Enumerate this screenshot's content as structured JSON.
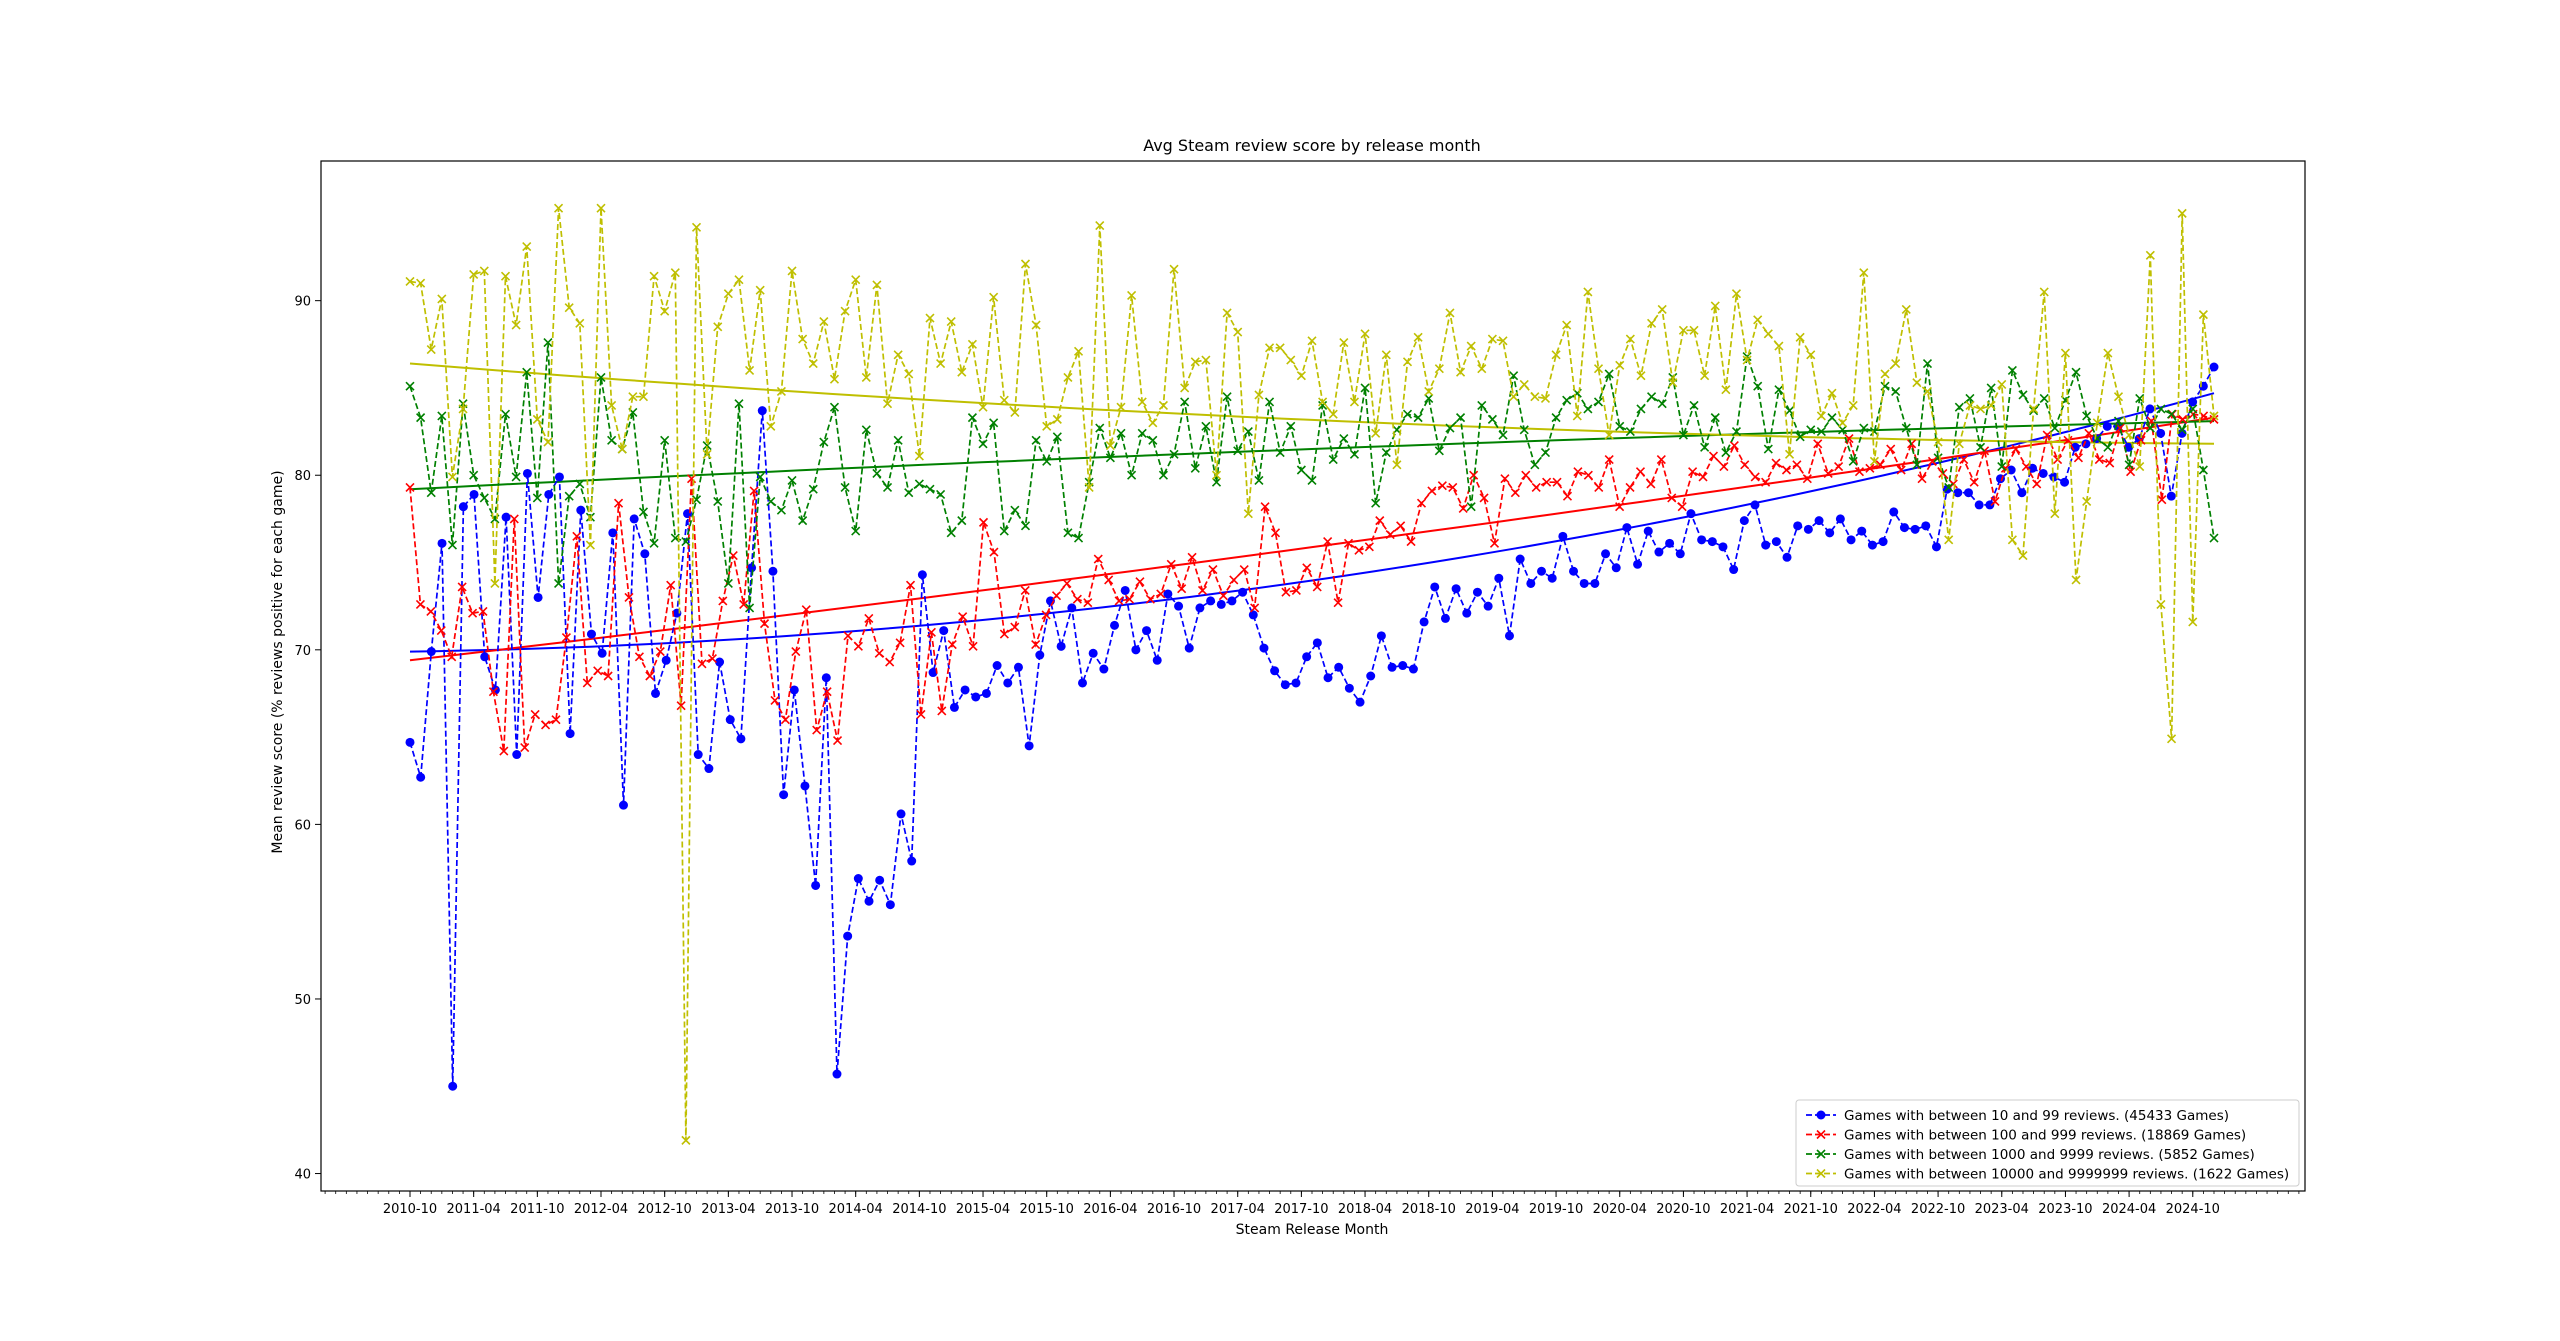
{
  "chart_data": {
    "type": "line",
    "title": "Avg Steam review score by release month",
    "xlabel": "Steam Release Month",
    "ylabel": "Mean review score (% reviews positive for each game)",
    "x_start": "2010-10",
    "x_end": "2024-12",
    "x_ticks": [
      "2010-10",
      "2011-04",
      "2011-10",
      "2012-04",
      "2012-10",
      "2013-04",
      "2013-10",
      "2014-04",
      "2014-10",
      "2015-04",
      "2015-10",
      "2016-04",
      "2016-10",
      "2017-04",
      "2017-10",
      "2018-04",
      "2018-10",
      "2019-04",
      "2019-10",
      "2020-04",
      "2020-10",
      "2021-04",
      "2021-10",
      "2022-04",
      "2022-10",
      "2023-04",
      "2023-10",
      "2024-04",
      "2024-10"
    ],
    "ylim": [
      39,
      98
    ],
    "y_ticks": [
      40,
      50,
      60,
      70,
      80,
      90
    ],
    "grid": false,
    "legend_position": "bottom-right",
    "series": [
      {
        "name": "Games with between 10 and 99 reviews. (45433 Games)",
        "color": "#0000ff",
        "marker": "circle",
        "values": [
          64.7,
          62.7,
          69.9,
          76.1,
          45.0,
          78.2,
          78.9,
          69.6,
          67.7,
          77.6,
          64.0,
          80.1,
          73.0,
          78.9,
          79.9,
          65.2,
          78.0,
          70.9,
          69.8,
          76.7,
          61.1,
          77.5,
          75.5,
          67.5,
          69.4,
          72.1,
          77.8,
          64.0,
          63.2,
          69.3,
          66.0,
          64.9,
          74.7,
          83.7,
          74.5,
          61.7,
          67.7,
          62.2,
          56.5,
          68.4,
          45.7,
          53.6,
          56.9,
          55.6,
          56.8,
          55.4,
          60.6,
          57.9,
          74.3,
          68.7,
          71.1,
          66.7,
          67.7,
          67.3,
          67.5,
          69.1,
          68.1,
          69.0,
          64.5,
          69.7,
          72.8,
          70.2,
          72.4,
          68.1,
          69.8,
          68.9,
          71.4,
          73.4,
          70.0,
          71.1,
          69.4,
          73.2,
          72.5,
          70.1,
          72.4,
          72.8,
          72.6,
          72.8,
          73.3,
          72.0,
          70.1,
          68.8,
          68.0,
          68.1,
          69.6,
          70.4,
          68.4,
          69.0,
          67.8,
          67.0,
          68.5,
          70.8,
          69.0,
          69.1,
          68.9,
          71.6,
          73.6,
          71.8,
          73.5,
          72.1,
          73.3,
          72.5,
          74.1,
          70.8,
          75.2,
          73.8,
          74.5,
          74.1,
          76.5,
          74.5,
          73.8,
          73.8,
          75.5,
          74.7,
          77.0,
          74.9,
          76.8,
          75.6,
          76.1,
          75.5,
          77.8,
          76.3,
          76.2,
          75.9,
          74.6,
          77.4,
          78.3,
          76.0,
          76.2,
          75.3,
          77.1,
          76.9,
          77.4,
          76.7,
          77.5,
          76.3,
          76.8,
          76.0,
          76.2,
          77.9,
          77.0,
          76.9,
          77.1,
          75.9,
          79.2,
          79.0,
          79.0,
          78.3,
          78.3,
          79.8,
          80.3,
          79.0,
          80.4,
          80.1,
          79.9,
          79.6,
          81.6,
          81.8,
          82.1,
          82.8,
          82.8,
          81.6,
          82.1,
          83.8,
          82.4,
          78.8,
          82.4,
          84.2,
          85.1,
          86.2
        ]
      },
      {
        "name": "Games with between 100 and 999 reviews. (18869 Games)",
        "color": "#ff0000",
        "marker": "x",
        "values": [
          79.3,
          72.6,
          72.2,
          71.1,
          69.6,
          73.6,
          72.1,
          72.2,
          67.6,
          64.2,
          77.5,
          64.4,
          66.3,
          65.7,
          66.0,
          70.7,
          76.5,
          68.1,
          68.8,
          68.5,
          78.4,
          73.0,
          69.6,
          68.5,
          69.9,
          73.7,
          66.8,
          79.8,
          69.2,
          69.5,
          72.8,
          75.4,
          72.6,
          79.1,
          71.5,
          67.1,
          66.0,
          69.9,
          72.3,
          65.4,
          67.6,
          64.8,
          70.8,
          70.2,
          71.8,
          69.8,
          69.3,
          70.4,
          73.7,
          66.3,
          71.0,
          66.5,
          70.3,
          71.9,
          70.2,
          77.3,
          75.6,
          70.9,
          71.3,
          73.4,
          70.3,
          72.0,
          73.1,
          73.8,
          72.9,
          72.7,
          75.2,
          74.0,
          72.8,
          72.9,
          73.9,
          72.9,
          73.2,
          74.9,
          73.5,
          75.3,
          73.4,
          74.6,
          73.1,
          74.0,
          74.6,
          72.4,
          78.2,
          76.7,
          73.3,
          73.4,
          74.7,
          73.6,
          76.2,
          72.7,
          76.1,
          75.7,
          75.9,
          77.4,
          76.6,
          77.1,
          76.2,
          78.4,
          79.1,
          79.4,
          79.3,
          78.1,
          80.0,
          78.7,
          76.1,
          79.8,
          79.0,
          80.0,
          79.3,
          79.6,
          79.6,
          78.8,
          80.2,
          80.0,
          79.3,
          80.9,
          78.2,
          79.3,
          80.2,
          79.5,
          80.9,
          78.7,
          78.2,
          80.2,
          79.9,
          81.1,
          80.5,
          81.7,
          80.6,
          79.9,
          79.6,
          80.7,
          80.3,
          80.6,
          79.8,
          81.8,
          80.1,
          80.5,
          82.1,
          80.2,
          80.4,
          80.6,
          81.5,
          80.3,
          81.8,
          79.8,
          80.8,
          80.1,
          79.5,
          80.9,
          79.6,
          81.4,
          78.5,
          80.4,
          81.5,
          80.5,
          79.5,
          82.3,
          80.9,
          82.0,
          81.0,
          82.4,
          80.9,
          80.7,
          82.7,
          80.2,
          82.0,
          83.1,
          78.6,
          83.5,
          83.2,
          83.5,
          83.4,
          83.2
        ]
      },
      {
        "name": "Games with between 1000 and 9999 reviews. (5852 Games)",
        "color": "#008000",
        "marker": "x",
        "values": [
          85.1,
          83.3,
          79.0,
          83.4,
          76.0,
          84.1,
          80.0,
          78.7,
          77.5,
          83.5,
          79.9,
          85.9,
          78.7,
          87.6,
          73.8,
          78.8,
          79.5,
          77.6,
          85.6,
          82.0,
          81.5,
          83.6,
          77.9,
          76.1,
          82.0,
          76.4,
          76.2,
          78.6,
          81.7,
          78.5,
          73.8,
          84.1,
          72.4,
          79.9,
          78.5,
          78.0,
          79.7,
          77.4,
          79.2,
          81.9,
          83.9,
          79.3,
          76.8,
          82.6,
          80.1,
          79.3,
          82.0,
          79.0,
          79.5,
          79.2,
          78.9,
          76.7,
          77.4,
          83.3,
          81.8,
          83.0,
          76.8,
          78.0,
          77.1,
          82.0,
          80.8,
          82.2,
          76.7,
          76.4,
          79.6,
          82.7,
          81.0,
          82.4,
          80.0,
          82.4,
          82.0,
          80.0,
          81.2,
          84.2,
          80.4,
          82.8,
          79.6,
          84.5,
          81.4,
          82.5,
          79.7,
          84.2,
          81.3,
          82.8,
          80.3,
          79.7,
          84.0,
          80.9,
          82.1,
          81.2,
          85.0,
          78.4,
          81.3,
          82.6,
          83.5,
          83.3,
          84.4,
          81.4,
          82.7,
          83.3,
          78.2,
          84.0,
          83.2,
          82.3,
          85.7,
          82.6,
          80.6,
          81.3,
          83.3,
          84.3,
          84.7,
          83.8,
          84.2,
          85.8,
          82.8,
          82.5,
          83.8,
          84.5,
          84.1,
          85.6,
          82.3,
          84.0,
          81.6,
          83.3,
          81.3,
          82.5,
          86.8,
          85.1,
          81.5,
          84.9,
          83.7,
          82.2,
          82.6,
          82.5,
          83.3,
          82.6,
          80.8,
          82.7,
          82.5,
          85.1,
          84.8,
          82.7,
          80.6,
          86.4,
          81.0,
          79.3,
          83.9,
          84.4,
          81.6,
          85.0,
          80.5,
          86.0,
          84.6,
          83.7,
          84.4,
          82.7,
          84.3,
          85.9,
          83.4,
          82.1,
          81.6,
          83.1,
          80.6,
          84.4,
          82.7,
          83.8,
          83.5,
          82.6,
          83.8,
          80.3,
          76.4
        ]
      },
      {
        "name": "Games with between 10000 and 9999999 reviews. (1622 Games)",
        "color": "#bfbf00",
        "marker": "x",
        "values": [
          91.1,
          91.0,
          87.2,
          90.1,
          79.9,
          83.8,
          91.5,
          91.7,
          73.8,
          91.4,
          88.6,
          93.1,
          83.2,
          81.9,
          95.3,
          89.6,
          88.7,
          76.0,
          95.3,
          84.0,
          81.5,
          84.5,
          84.5,
          91.4,
          89.4,
          91.6,
          41.9,
          94.2,
          81.2,
          88.5,
          90.4,
          91.2,
          86.0,
          90.6,
          82.8,
          84.8,
          91.7,
          87.8,
          86.4,
          88.8,
          85.5,
          89.4,
          91.2,
          85.6,
          90.9,
          84.1,
          86.9,
          85.8,
          81.1,
          89.0,
          86.4,
          88.8,
          85.9,
          87.5,
          83.9,
          90.2,
          84.3,
          83.6,
          92.1,
          88.6,
          82.8,
          83.2,
          85.6,
          87.1,
          79.3,
          94.3,
          81.7,
          83.9,
          90.3,
          84.2,
          83.0,
          84.0,
          91.8,
          85.0,
          86.5,
          86.6,
          80.0,
          89.3,
          88.2,
          77.8,
          84.6,
          87.3,
          87.3,
          86.6,
          85.7,
          87.7,
          84.2,
          83.5,
          87.6,
          84.2,
          88.1,
          82.4,
          86.9,
          80.6,
          86.5,
          87.9,
          84.8,
          86.1,
          89.3,
          85.9,
          87.4,
          86.1,
          87.8,
          87.7,
          84.5,
          85.2,
          84.5,
          84.4,
          86.9,
          88.6,
          83.4,
          90.5,
          86.1,
          82.3,
          86.3,
          87.8,
          85.7,
          88.7,
          89.5,
          85.3,
          88.3,
          88.3,
          85.7,
          89.7,
          84.9,
          90.4,
          86.6,
          88.9,
          88.1,
          87.4,
          81.2,
          87.9,
          86.9,
          83.4,
          84.7,
          83.0,
          84.0,
          91.6,
          80.8,
          85.8,
          86.4,
          89.5,
          85.3,
          84.8,
          81.9,
          76.3,
          81.8,
          84.0,
          83.8,
          84.0,
          85.2,
          76.3,
          75.4,
          83.8,
          90.5,
          77.8,
          87.0,
          74.0,
          78.5,
          83.0,
          87.0,
          84.5,
          82.3,
          80.5,
          92.6,
          72.6,
          64.9,
          95.0,
          71.6,
          89.2,
          83.4
        ]
      }
    ],
    "trend_lines": [
      {
        "color": "#0000ff",
        "start": 69.9,
        "end": 84.7
      },
      {
        "color": "#ff0000",
        "start": 69.4,
        "end": 83.3
      },
      {
        "color": "#008000",
        "start": 79.2,
        "end": 83.1
      },
      {
        "color": "#bfbf00",
        "start": 86.4,
        "end": 81.8
      }
    ]
  }
}
